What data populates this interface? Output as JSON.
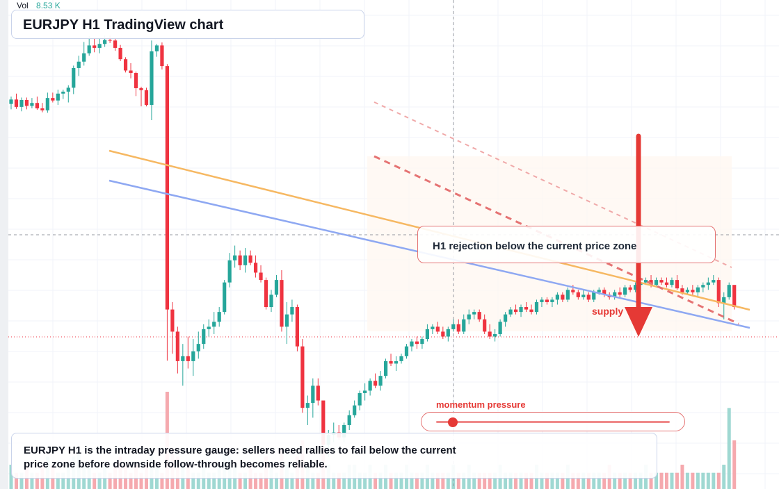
{
  "header": {
    "vol_label": "Vol",
    "vol_value": "8.53 K",
    "title": "EURJPY H1 TradingView chart"
  },
  "annotations": {
    "callout": "H1 rejection below the current price zone",
    "supply_label": "supply",
    "momentum_label": "momentum pressure",
    "momentum_level": 0.07,
    "summary": "EURJPY H1 is the intraday pressure gauge: sellers need rallies to fail below the current price zone before downside follow-through becomes reliable."
  },
  "colors": {
    "bull": "#26a69a",
    "bear": "#ef3340",
    "orange_trendline": "#f6b862",
    "blue_trendline": "#8ea8f2",
    "red_dashed": "#e57373",
    "arrow": "#e53935"
  },
  "chart_data": {
    "type": "candlestick",
    "timeframe": "H1",
    "symbol": "EURJPY",
    "y_range": [
      0,
      100
    ],
    "ohlc": [
      [
        78.3,
        79.8,
        77.2,
        79.2
      ],
      [
        79.2,
        80.4,
        77.3,
        77.7
      ],
      [
        77.7,
        79.6,
        76.8,
        79.1
      ],
      [
        79.1,
        79.6,
        77.2,
        77.9
      ],
      [
        77.9,
        79.5,
        77.4,
        78.5
      ],
      [
        78.5,
        79.8,
        77.1,
        77.4
      ],
      [
        77.4,
        78.5,
        76.6,
        77.0
      ],
      [
        77.0,
        80.6,
        76.5,
        79.5
      ],
      [
        79.5,
        80.6,
        78.6,
        79.0
      ],
      [
        79.0,
        81.2,
        78.1,
        80.4
      ],
      [
        80.4,
        81.2,
        79.3,
        80.8
      ],
      [
        80.8,
        82.1,
        78.6,
        81.6
      ],
      [
        81.6,
        86.1,
        80.3,
        85.6
      ],
      [
        85.6,
        88.1,
        84.0,
        86.9
      ],
      [
        86.9,
        90.9,
        86.1,
        88.6
      ],
      [
        88.6,
        92.1,
        88.1,
        90.2
      ],
      [
        90.2,
        91.8,
        88.8,
        89.7
      ],
      [
        89.7,
        91.6,
        88.6,
        90.5
      ],
      [
        90.5,
        92.2,
        89.9,
        91.3
      ],
      [
        91.3,
        92.2,
        90.7,
        91.2
      ],
      [
        91.2,
        91.6,
        89.1,
        89.7
      ],
      [
        89.7,
        90.3,
        87.0,
        87.4
      ],
      [
        87.4,
        87.8,
        84.7,
        85.1
      ],
      [
        85.1,
        86.6,
        83.5,
        84.6
      ],
      [
        84.6,
        84.9,
        79.9,
        81.5
      ],
      [
        81.5,
        81.8,
        77.8,
        81.1
      ],
      [
        81.1,
        81.6,
        77.8,
        78.1
      ],
      [
        78.1,
        91.2,
        75.0,
        89.0
      ],
      [
        89.0,
        90.5,
        87.9,
        90.2
      ],
      [
        90.2,
        90.8,
        85.3,
        86.0
      ],
      [
        86.0,
        86.4,
        26.1,
        36.5
      ],
      [
        36.5,
        38.0,
        27.5,
        32.0
      ],
      [
        32.0,
        33.0,
        23.5,
        26.0
      ],
      [
        26.0,
        29.5,
        21.0,
        27.0
      ],
      [
        27.0,
        31.0,
        24.5,
        26.0
      ],
      [
        26.0,
        30.5,
        23.0,
        28.0
      ],
      [
        28.0,
        32.0,
        26.5,
        29.5
      ],
      [
        29.5,
        33.5,
        28.5,
        32.5
      ],
      [
        32.5,
        34.5,
        31.0,
        33.0
      ],
      [
        33.0,
        36.0,
        31.5,
        34.0
      ],
      [
        34.0,
        37.0,
        33.0,
        36.0
      ],
      [
        36.0,
        42.5,
        35.5,
        42.0
      ],
      [
        42.0,
        48.0,
        41.0,
        46.5
      ],
      [
        46.5,
        49.5,
        45.0,
        47.5
      ],
      [
        47.5,
        48.5,
        44.5,
        45.5
      ],
      [
        45.5,
        49.0,
        44.0,
        47.5
      ],
      [
        47.5,
        48.5,
        45.5,
        46.0
      ],
      [
        46.0,
        47.5,
        43.0,
        44.0
      ],
      [
        44.0,
        45.5,
        42.0,
        42.5
      ],
      [
        42.5,
        43.0,
        36.5,
        37.0
      ],
      [
        37.0,
        40.5,
        36.0,
        39.5
      ],
      [
        39.5,
        43.5,
        39.0,
        42.5
      ],
      [
        42.5,
        44.5,
        32.0,
        33.0
      ],
      [
        33.0,
        38.0,
        29.5,
        35.5
      ],
      [
        35.5,
        38.5,
        34.0,
        37.0
      ],
      [
        37.0,
        37.5,
        28.0,
        29.0
      ],
      [
        29.0,
        30.5,
        15.5,
        16.5
      ],
      [
        16.5,
        19.0,
        13.0,
        17.5
      ],
      [
        17.5,
        22.5,
        14.5,
        21.0
      ],
      [
        21.0,
        22.5,
        17.0,
        18.0
      ],
      [
        18.0,
        17.5,
        8.0,
        9.0
      ],
      [
        9.0,
        12.0,
        6.5,
        11.0
      ],
      [
        11.0,
        13.5,
        9.5,
        11.5
      ],
      [
        11.5,
        13.0,
        10.0,
        10.5
      ],
      [
        10.5,
        13.5,
        9.5,
        13.0
      ],
      [
        13.0,
        16.0,
        12.0,
        15.0
      ],
      [
        15.0,
        18.0,
        14.5,
        17.0
      ],
      [
        17.0,
        20.0,
        16.0,
        19.5
      ],
      [
        19.5,
        21.5,
        18.0,
        20.0
      ],
      [
        20.0,
        22.5,
        19.0,
        22.0
      ],
      [
        22.0,
        23.5,
        20.5,
        21.0
      ],
      [
        21.0,
        24.0,
        20.0,
        23.0
      ],
      [
        23.0,
        26.5,
        22.5,
        26.0
      ],
      [
        26.0,
        27.5,
        25.0,
        25.5
      ],
      [
        25.5,
        27.0,
        24.0,
        26.0
      ],
      [
        26.0,
        27.5,
        25.5,
        27.0
      ],
      [
        27.0,
        29.5,
        26.5,
        29.0
      ],
      [
        29.0,
        30.5,
        28.0,
        30.0
      ],
      [
        30.0,
        31.0,
        28.5,
        29.5
      ],
      [
        29.5,
        31.0,
        28.5,
        30.5
      ],
      [
        30.5,
        33.5,
        30.0,
        32.5
      ],
      [
        32.5,
        33.5,
        31.5,
        33.0
      ],
      [
        33.0,
        34.0,
        31.5,
        32.0
      ],
      [
        32.0,
        33.0,
        30.5,
        31.0
      ],
      [
        31.0,
        33.0,
        30.0,
        32.5
      ],
      [
        32.5,
        34.5,
        32.0,
        33.5
      ],
      [
        33.5,
        34.5,
        31.5,
        32.0
      ],
      [
        32.0,
        35.5,
        31.5,
        34.5
      ],
      [
        34.5,
        36.5,
        33.5,
        35.5
      ],
      [
        35.5,
        36.5,
        34.5,
        36.0
      ],
      [
        36.0,
        36.5,
        34.0,
        34.5
      ],
      [
        34.5,
        35.5,
        31.5,
        32.0
      ],
      [
        32.0,
        33.5,
        30.5,
        31.0
      ],
      [
        31.0,
        32.5,
        30.0,
        31.5
      ],
      [
        31.5,
        34.5,
        31.0,
        34.0
      ],
      [
        34.0,
        36.0,
        33.0,
        35.5
      ],
      [
        35.5,
        37.0,
        35.0,
        36.5
      ],
      [
        36.5,
        37.5,
        35.5,
        36.0
      ],
      [
        36.0,
        37.5,
        35.0,
        37.0
      ],
      [
        37.0,
        38.0,
        36.0,
        36.5
      ],
      [
        36.5,
        37.5,
        35.5,
        36.0
      ],
      [
        36.0,
        38.5,
        35.5,
        38.0
      ],
      [
        38.0,
        39.0,
        37.0,
        38.5
      ],
      [
        38.5,
        39.0,
        37.5,
        38.0
      ],
      [
        38.0,
        39.0,
        37.0,
        38.5
      ],
      [
        38.5,
        40.0,
        37.5,
        39.5
      ],
      [
        39.5,
        40.0,
        38.0,
        38.5
      ],
      [
        38.5,
        41.0,
        38.0,
        40.5
      ],
      [
        40.5,
        41.5,
        39.5,
        40.0
      ],
      [
        40.0,
        40.5,
        38.5,
        39.0
      ],
      [
        39.0,
        40.5,
        38.5,
        39.5
      ],
      [
        39.5,
        40.0,
        38.0,
        38.5
      ],
      [
        38.5,
        40.5,
        38.0,
        40.0
      ],
      [
        40.0,
        41.0,
        39.5,
        40.5
      ],
      [
        40.5,
        41.0,
        39.0,
        39.5
      ],
      [
        39.5,
        40.0,
        38.5,
        39.0
      ],
      [
        39.0,
        40.5,
        38.5,
        40.0
      ],
      [
        40.0,
        41.0,
        39.0,
        39.5
      ],
      [
        39.5,
        41.5,
        39.0,
        41.0
      ],
      [
        41.0,
        41.5,
        40.0,
        40.5
      ],
      [
        40.5,
        42.0,
        40.0,
        41.5
      ],
      [
        41.5,
        42.5,
        40.5,
        42.0
      ],
      [
        42.0,
        43.0,
        41.5,
        42.5
      ],
      [
        42.5,
        43.5,
        41.0,
        41.5
      ],
      [
        41.5,
        43.0,
        41.0,
        42.5
      ],
      [
        42.5,
        43.0,
        41.5,
        42.0
      ],
      [
        42.0,
        43.0,
        41.0,
        41.5
      ],
      [
        41.5,
        43.0,
        41.0,
        42.5
      ],
      [
        42.5,
        43.5,
        40.5,
        40.8
      ],
      [
        40.8,
        41.5,
        39.5,
        40.0
      ],
      [
        40.0,
        41.0,
        39.5,
        40.5
      ],
      [
        40.5,
        41.5,
        39.5,
        40.0
      ],
      [
        40.0,
        41.5,
        39.0,
        41.0
      ],
      [
        41.0,
        42.0,
        40.0,
        41.5
      ],
      [
        41.5,
        43.0,
        40.5,
        42.0
      ],
      [
        42.0,
        43.5,
        41.5,
        42.5
      ],
      [
        42.5,
        43.0,
        37.0,
        37.8
      ],
      [
        37.8,
        40.0,
        34.5,
        39.0
      ],
      [
        39.0,
        42.0,
        38.5,
        41.5
      ],
      [
        41.5,
        40.5,
        36.5,
        37.0
      ]
    ],
    "volume": [
      3,
      2,
      2,
      3,
      2,
      2,
      3,
      4,
      3,
      2,
      2,
      3,
      4,
      5,
      3,
      3,
      2,
      2,
      3,
      2,
      3,
      4,
      3,
      2,
      3,
      2,
      3,
      5,
      3,
      2,
      12,
      5,
      4,
      3,
      3,
      2,
      2,
      3,
      2,
      2,
      3,
      5,
      4,
      3,
      2,
      2,
      3,
      2,
      2,
      4,
      3,
      2,
      5,
      3,
      2,
      4,
      6,
      3,
      2,
      2,
      5,
      3,
      2,
      2,
      2,
      3,
      3,
      2,
      2,
      3,
      2,
      2,
      3,
      2,
      2,
      2,
      3,
      2,
      2,
      2,
      3,
      2,
      2,
      2,
      2,
      3,
      2,
      2,
      3,
      2,
      2,
      2,
      2,
      2,
      3,
      2,
      2,
      2,
      2,
      2,
      2,
      3,
      2,
      2,
      2,
      2,
      2,
      3,
      2,
      2,
      2,
      2,
      2,
      2,
      2,
      3,
      2,
      2,
      2,
      2,
      2,
      2,
      3,
      2,
      2,
      2,
      2,
      2,
      2,
      3,
      2,
      2,
      2,
      2,
      2,
      2,
      2,
      3,
      10,
      6,
      4,
      3,
      3
    ]
  }
}
